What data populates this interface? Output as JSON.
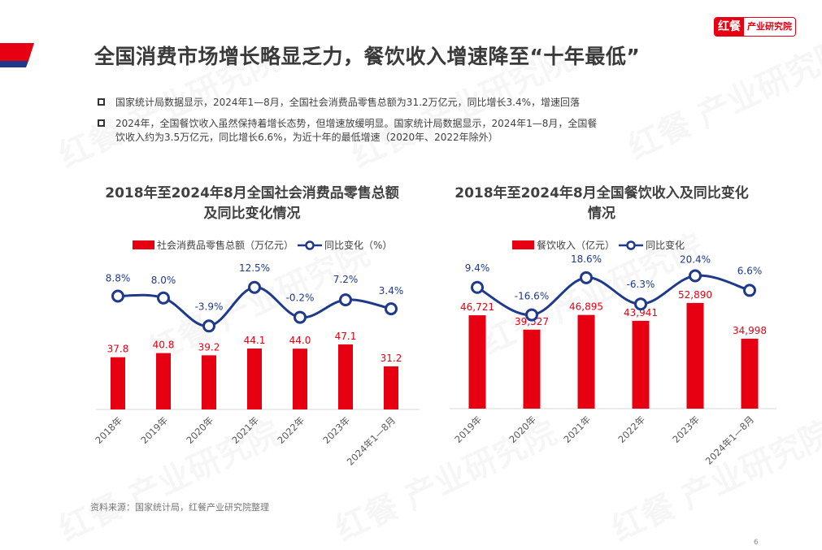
{
  "header": {
    "title": "全国消费市场增长略显乏力，餐饮收入增速降至“十年最低”",
    "logo_mark": "红餐",
    "logo_text": "产业研究院",
    "accent_red": "#e60012",
    "accent_blue": "#1f3a8a"
  },
  "bullets": [
    {
      "text": "国家统计局数据显示，2024年1—8月，全国社会消费品零售总额为31.2万亿元，同比增长3.4%，增速回落"
    },
    {
      "text": "2024年，全国餐饮收入虽然保持着增长态势，但增速放缓明显。国家统计局数据显示，2024年1—8月，全国餐饮收入约为3.5万亿元，同比增长6.6%，为近十年的最低增速（2020年、2022年除外）"
    }
  ],
  "charts": [
    {
      "title_line1": "2018年至2024年8月全国社会消费品零售总额",
      "title_line2": "及同比变化情况",
      "legend_bar": "社会消费品零售总额（万亿元）",
      "legend_line": "同比变化（%）"
    },
    {
      "title_line1": "2018年至2024年8月全国餐饮收入及同比变化",
      "title_line2": "情况",
      "legend_bar": "餐饮收入（亿元）",
      "legend_line": "同比变化"
    }
  ],
  "chart_data": [
    {
      "type": "bar",
      "title": "2018年至2024年8月全国社会消费品零售总额及同比变化情况",
      "categories": [
        "2018年",
        "2019年",
        "2020年",
        "2021年",
        "2022年",
        "2023年",
        "2024年1—8月"
      ],
      "series": [
        {
          "name": "社会消费品零售总额（万亿元）",
          "type": "bar",
          "color": "#e60012",
          "values": [
            37.8,
            40.8,
            39.2,
            44.1,
            44.0,
            47.1,
            31.2
          ],
          "labels": [
            "37.8",
            "40.8",
            "39.2",
            "44.1",
            "44.0",
            "47.1",
            "31.2"
          ]
        },
        {
          "name": "同比变化（%）",
          "type": "line",
          "color": "#1f3a8a",
          "values": [
            8.8,
            8.0,
            -3.9,
            12.5,
            -0.2,
            7.2,
            3.4
          ],
          "labels": [
            "8.8%",
            "8.0%",
            "-3.9%",
            "12.5%",
            "-0.2%",
            "7.2%",
            "3.4%"
          ]
        }
      ],
      "xlabel": "",
      "ylabel": "",
      "legend_position": "top",
      "grid": false
    },
    {
      "type": "bar",
      "title": "2018年至2024年8月全国餐饮收入及同比变化情况",
      "categories": [
        "2019年",
        "2020年",
        "2021年",
        "2022年",
        "2023年",
        "2024年1—8月"
      ],
      "series": [
        {
          "name": "餐饮收入（亿元）",
          "type": "bar",
          "color": "#e60012",
          "values": [
            46721,
            39527,
            46895,
            43941,
            52890,
            34998
          ],
          "labels": [
            "46,721",
            "39,527",
            "46,895",
            "43,941",
            "52,890",
            "34,998"
          ]
        },
        {
          "name": "同比变化",
          "type": "line",
          "color": "#1f3a8a",
          "values": [
            9.4,
            -16.6,
            18.6,
            -6.3,
            20.4,
            6.6
          ],
          "labels": [
            "9.4%",
            "-16.6%",
            "18.6%",
            "-6.3%",
            "20.4%",
            "6.6%"
          ]
        }
      ],
      "xlabel": "",
      "ylabel": "",
      "legend_position": "top",
      "grid": false
    }
  ],
  "footer": {
    "source": "资料来源：国家统计局，红餐产业研究院整理",
    "page_number": "6"
  }
}
